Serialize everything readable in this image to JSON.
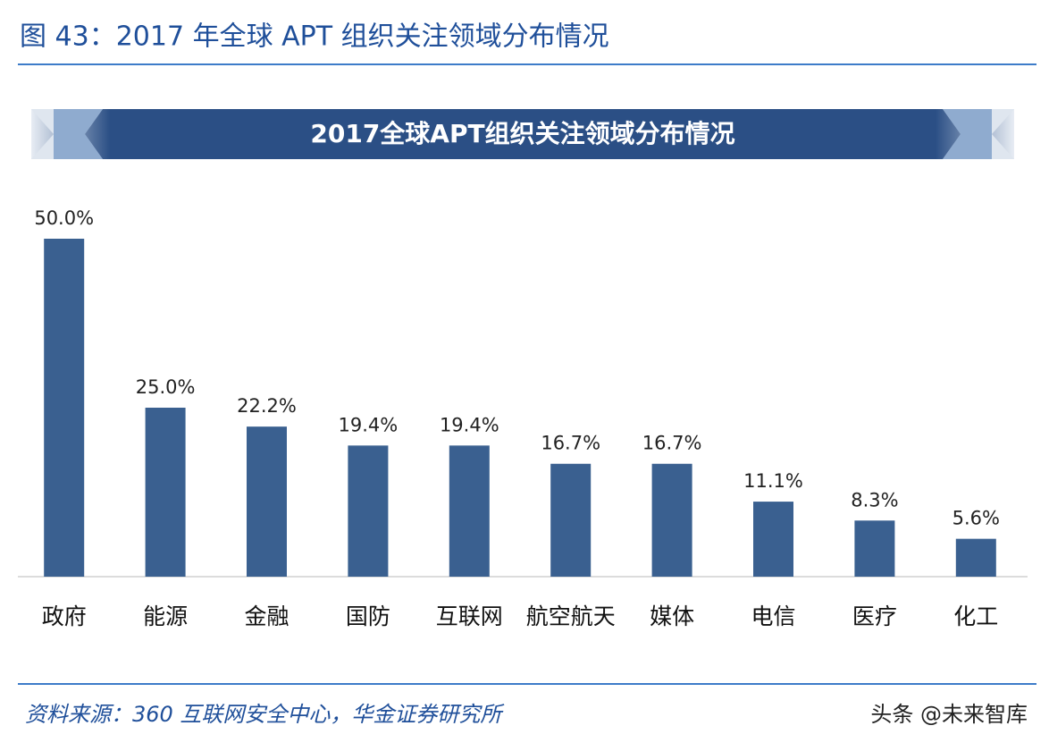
{
  "figure_title": "图 43：2017 年全球 APT 组织关注领域分布情况",
  "source": "资料来源：360 互联网安全中心，华金证券研究所",
  "watermark": "头条 @未来智库",
  "chart_data": {
    "type": "bar",
    "title": "2017全球APT组织关注领域分布情况",
    "categories": [
      "政府",
      "能源",
      "金融",
      "国防",
      "互联网",
      "航空航天",
      "媒体",
      "电信",
      "医疗",
      "化工"
    ],
    "values": [
      50.0,
      25.0,
      22.2,
      19.4,
      19.4,
      16.7,
      16.7,
      11.1,
      8.3,
      5.6
    ],
    "value_labels": [
      "50.0%",
      "25.0%",
      "22.2%",
      "19.4%",
      "19.4%",
      "16.7%",
      "16.7%",
      "11.1%",
      "8.3%",
      "5.6%"
    ],
    "color": "#3a6090"
  }
}
